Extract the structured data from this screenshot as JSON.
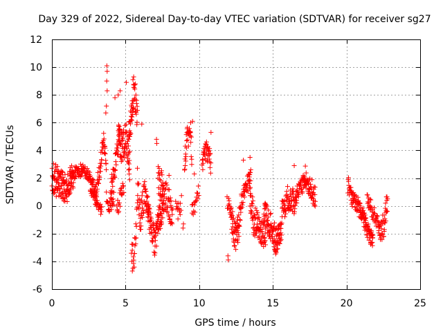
{
  "chart_data": {
    "type": "scatter",
    "title": "Day 329 of 2022, Sidereal Day-to-day VTEC variation (SDTVAR) for receiver sg27",
    "xlabel": "GPS time / hours",
    "ylabel": "SDTVAR / TECUs",
    "xlim": [
      0,
      25
    ],
    "ylim": [
      -6,
      12
    ],
    "x_ticks": [
      "0",
      "5",
      "10",
      "15",
      "20",
      "25"
    ],
    "y_ticks": [
      "-6",
      "-4",
      "-2",
      "0",
      "2",
      "4",
      "6",
      "8",
      "10",
      "12"
    ],
    "grid": true,
    "marker": "+",
    "series": [
      {
        "name": "SDTVAR",
        "color": "#ff0000",
        "segments": [
          {
            "start": 0.0,
            "end": 1.5,
            "step": 0.018,
            "kp": [
              [
                0.0,
                2.2
              ],
              [
                0.2,
                2.4
              ],
              [
                0.5,
                2.0
              ],
              [
                0.8,
                1.8
              ],
              [
                1.0,
                1.4
              ],
              [
                1.2,
                1.6
              ],
              [
                1.5,
                2.0
              ]
            ],
            "spread": 0.7
          },
          {
            "start": 0.0,
            "end": 1.2,
            "step": 0.03,
            "kp": [
              [
                0.0,
                1.2
              ],
              [
                0.3,
                1.0
              ],
              [
                0.6,
                1.0
              ],
              [
                0.9,
                0.6
              ],
              [
                1.2,
                0.8
              ]
            ],
            "spread": 0.4
          },
          {
            "start": 1.2,
            "end": 3.0,
            "step": 0.018,
            "kp": [
              [
                1.2,
                2.3
              ],
              [
                1.8,
                2.5
              ],
              [
                2.2,
                2.6
              ],
              [
                2.6,
                2.0
              ],
              [
                3.0,
                1.0
              ]
            ],
            "spread": 0.4
          },
          {
            "start": 2.6,
            "end": 3.4,
            "step": 0.02,
            "kp": [
              [
                2.6,
                1.0
              ],
              [
                2.9,
                0.6
              ],
              [
                3.1,
                0.0
              ],
              [
                3.4,
                -0.3
              ]
            ],
            "spread": 0.3
          },
          {
            "start": 3.0,
            "end": 3.7,
            "step": 0.015,
            "kp": [
              [
                3.0,
                1.0
              ],
              [
                3.3,
                3.0
              ],
              [
                3.5,
                5.0
              ],
              [
                3.7,
                2.5
              ]
            ],
            "spread": 0.6
          },
          {
            "start": 3.7,
            "end": 4.2,
            "step": 0.02,
            "kp": [
              [
                3.7,
                0.5
              ],
              [
                3.9,
                0.0
              ],
              [
                4.2,
                0.5
              ]
            ],
            "spread": 0.4
          },
          {
            "start": 4.0,
            "end": 4.6,
            "step": 0.015,
            "kp": [
              [
                4.0,
                1.0
              ],
              [
                4.3,
                3.0
              ],
              [
                4.6,
                5.5
              ]
            ],
            "spread": 0.8
          },
          {
            "start": 4.5,
            "end": 5.3,
            "step": 0.012,
            "kp": [
              [
                4.5,
                5.0
              ],
              [
                4.8,
                4.0
              ],
              [
                5.0,
                5.0
              ],
              [
                5.3,
                3.0
              ]
            ],
            "spread": 1.2
          },
          {
            "start": 4.4,
            "end": 4.9,
            "step": 0.025,
            "kp": [
              [
                4.4,
                -0.5
              ],
              [
                4.6,
                0.5
              ],
              [
                4.9,
                1.5
              ]
            ],
            "spread": 0.6
          },
          {
            "start": 5.2,
            "end": 5.8,
            "step": 0.012,
            "kp": [
              [
                5.2,
                5.0
              ],
              [
                5.4,
                6.5
              ],
              [
                5.6,
                8.5
              ],
              [
                5.8,
                6.0
              ]
            ],
            "spread": 1.0
          },
          {
            "start": 5.4,
            "end": 5.8,
            "step": 0.02,
            "kp": [
              [
                5.4,
                -3.0
              ],
              [
                5.6,
                -4.0
              ],
              [
                5.8,
                0.0
              ]
            ],
            "spread": 0.8
          },
          {
            "start": 5.8,
            "end": 6.6,
            "step": 0.015,
            "kp": [
              [
                5.8,
                2.0
              ],
              [
                6.0,
                -1.0
              ],
              [
                6.3,
                1.0
              ],
              [
                6.6,
                -0.5
              ]
            ],
            "spread": 1.0
          },
          {
            "start": 6.5,
            "end": 7.6,
            "step": 0.012,
            "kp": [
              [
                6.5,
                0.0
              ],
              [
                6.8,
                -2.0
              ],
              [
                7.0,
                -2.5
              ],
              [
                7.3,
                -1.0
              ],
              [
                7.6,
                0.5
              ]
            ],
            "spread": 1.0
          },
          {
            "start": 7.2,
            "end": 8.2,
            "step": 0.015,
            "kp": [
              [
                7.2,
                2.0
              ],
              [
                7.5,
                1.0
              ],
              [
                7.8,
                0.5
              ],
              [
                8.2,
                -0.5
              ]
            ],
            "spread": 1.2
          },
          {
            "start": 8.4,
            "end": 8.8,
            "step": 0.03,
            "kp": [
              [
                8.4,
                0.0
              ],
              [
                8.6,
                -0.5
              ],
              [
                8.8,
                0.2
              ]
            ],
            "spread": 0.6
          },
          {
            "start": 9.0,
            "end": 9.5,
            "step": 0.015,
            "kp": [
              [
                9.0,
                3.0
              ],
              [
                9.2,
                5.5
              ],
              [
                9.5,
                4.0
              ]
            ],
            "spread": 1.0
          },
          {
            "start": 9.5,
            "end": 10.0,
            "step": 0.03,
            "kp": [
              [
                9.5,
                -0.5
              ],
              [
                9.8,
                0.5
              ],
              [
                10.0,
                1.0
              ]
            ],
            "spread": 0.6
          },
          {
            "start": 10.2,
            "end": 10.8,
            "step": 0.015,
            "kp": [
              [
                10.2,
                3.0
              ],
              [
                10.5,
                4.0
              ],
              [
                10.8,
                3.0
              ]
            ],
            "spread": 0.8
          },
          {
            "start": 11.9,
            "end": 12.2,
            "step": 0.02,
            "kp": [
              [
                11.9,
                0.5
              ],
              [
                12.2,
                -0.5
              ]
            ],
            "spread": 0.5
          },
          {
            "start": 12.2,
            "end": 12.8,
            "step": 0.012,
            "kp": [
              [
                12.2,
                -1.0
              ],
              [
                12.5,
                -2.5
              ],
              [
                12.8,
                -0.5
              ]
            ],
            "spread": 1.0
          },
          {
            "start": 12.8,
            "end": 13.5,
            "step": 0.018,
            "kp": [
              [
                12.8,
                0.0
              ],
              [
                13.2,
                1.5
              ],
              [
                13.5,
                2.0
              ]
            ],
            "spread": 0.6
          },
          {
            "start": 13.4,
            "end": 14.5,
            "step": 0.012,
            "kp": [
              [
                13.4,
                1.0
              ],
              [
                13.7,
                -1.0
              ],
              [
                14.0,
                -1.5
              ],
              [
                14.5,
                -2.0
              ]
            ],
            "spread": 1.0
          },
          {
            "start": 14.4,
            "end": 15.6,
            "step": 0.012,
            "kp": [
              [
                14.4,
                -0.5
              ],
              [
                14.8,
                -1.5
              ],
              [
                15.2,
                -2.5
              ],
              [
                15.6,
                -1.5
              ]
            ],
            "spread": 1.0
          },
          {
            "start": 15.6,
            "end": 16.4,
            "step": 0.015,
            "kp": [
              [
                15.6,
                -0.5
              ],
              [
                16.0,
                0.5
              ],
              [
                16.4,
                0.5
              ]
            ],
            "spread": 0.8
          },
          {
            "start": 16.4,
            "end": 17.2,
            "step": 0.015,
            "kp": [
              [
                16.4,
                0.0
              ],
              [
                16.7,
                1.0
              ],
              [
                17.2,
                2.0
              ]
            ],
            "spread": 0.6
          },
          {
            "start": 17.2,
            "end": 17.9,
            "step": 0.015,
            "kp": [
              [
                17.2,
                2.0
              ],
              [
                17.5,
                1.5
              ],
              [
                17.9,
                0.5
              ]
            ],
            "spread": 0.8
          },
          {
            "start": 20.1,
            "end": 20.8,
            "step": 0.015,
            "kp": [
              [
                20.1,
                1.5
              ],
              [
                20.4,
                0.5
              ],
              [
                20.8,
                0.0
              ]
            ],
            "spread": 0.6
          },
          {
            "start": 20.8,
            "end": 21.8,
            "step": 0.012,
            "kp": [
              [
                20.8,
                0.0
              ],
              [
                21.2,
                -1.0
              ],
              [
                21.5,
                -2.0
              ],
              [
                21.8,
                -2.5
              ]
            ],
            "spread": 0.6
          },
          {
            "start": 21.4,
            "end": 22.2,
            "step": 0.02,
            "kp": [
              [
                21.4,
                0.5
              ],
              [
                21.8,
                -0.5
              ],
              [
                22.2,
                -1.5
              ]
            ],
            "spread": 0.5
          },
          {
            "start": 22.2,
            "end": 22.8,
            "step": 0.015,
            "kp": [
              [
                22.2,
                -2.0
              ],
              [
                22.5,
                -1.5
              ],
              [
                22.8,
                0.5
              ]
            ],
            "spread": 0.8
          }
        ],
        "outliers": [
          [
            3.73,
            10.1
          ],
          [
            3.75,
            9.7
          ],
          [
            3.72,
            9.0
          ],
          [
            3.75,
            8.3
          ],
          [
            3.7,
            7.2
          ],
          [
            3.66,
            6.7
          ],
          [
            4.63,
            8.3
          ],
          [
            4.5,
            8.0
          ],
          [
            4.28,
            7.8
          ],
          [
            5.05,
            8.9
          ],
          [
            5.55,
            9.3
          ],
          [
            5.5,
            9.1
          ],
          [
            5.46,
            -4.7
          ],
          [
            5.5,
            -4.5
          ],
          [
            5.62,
            -2.3
          ],
          [
            6.1,
            5.9
          ],
          [
            7.1,
            4.8
          ],
          [
            7.12,
            4.5
          ],
          [
            7.95,
            2.2
          ],
          [
            8.93,
            -1.3
          ],
          [
            8.9,
            -1.6
          ],
          [
            9.42,
            6.0
          ],
          [
            9.55,
            6.1
          ],
          [
            9.67,
            2.3
          ],
          [
            10.8,
            5.3
          ],
          [
            11.95,
            -3.6
          ],
          [
            11.97,
            -3.9
          ],
          [
            13.0,
            3.3
          ],
          [
            13.45,
            3.5
          ],
          [
            13.5,
            2.6
          ],
          [
            14.5,
            -2.8
          ],
          [
            16.45,
            2.9
          ],
          [
            16.0,
            1.4
          ],
          [
            15.2,
            -3.3
          ]
        ]
      }
    ]
  }
}
